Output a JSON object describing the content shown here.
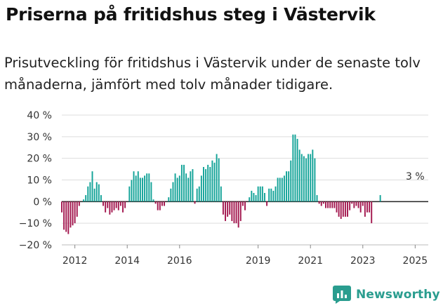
{
  "title": "Priserna på fritidshus steg i Västervik",
  "subtitle": "Prisutveckling för fritidshus i Västervik under de senaste tolv månaderna, jämfört med tolv månader tidigare.",
  "brand": {
    "name": "Newsworthy",
    "icon": "newsworthy-logo-icon",
    "color": "#2a9d8f"
  },
  "chart_data": {
    "type": "bar",
    "colors": {
      "positive": "#13a398",
      "negative": "#a3184f",
      "zero_line": "#222222",
      "grid": "#dddddd"
    },
    "ylim": [
      -20,
      40
    ],
    "yticks": [
      -20,
      -10,
      0,
      10,
      20,
      30,
      40
    ],
    "ytick_labels": [
      "−20 %",
      "−10 %",
      "0 %",
      "10 %",
      "20 %",
      "30 %",
      "40 %"
    ],
    "xticks": [
      2012,
      2014,
      2016,
      2019,
      2021,
      2023,
      2025
    ],
    "xlim": [
      2011.5,
      2025.5
    ],
    "annotation": {
      "text": "3 %",
      "x": 2025.0,
      "y": 3
    },
    "start": 2011.5,
    "step": 0.083333,
    "values": [
      -5,
      -13,
      -14,
      -15,
      -12,
      -11,
      -10,
      -7,
      -2,
      0,
      1,
      3,
      7,
      9,
      14,
      6,
      9,
      8,
      3,
      -2,
      -5,
      -3,
      -6,
      -5,
      -4,
      -3,
      -4,
      -2,
      -5,
      -3,
      0,
      7,
      10,
      14,
      12,
      14,
      11,
      11,
      12,
      13,
      13,
      9,
      1,
      -1,
      -4,
      -4,
      -2,
      -2,
      0,
      2,
      6,
      9,
      13,
      11,
      12,
      17,
      17,
      13,
      11,
      14,
      15,
      -1,
      6,
      7,
      12,
      16,
      15,
      17,
      16,
      19,
      18,
      22,
      20,
      7,
      -6,
      -9,
      -7,
      -6,
      -9,
      -10,
      -10,
      -12,
      -9,
      -2,
      -4,
      0,
      2,
      5,
      4,
      3,
      7,
      7,
      7,
      4,
      -2,
      6,
      6,
      5,
      7,
      11,
      11,
      11,
      12,
      14,
      14,
      19,
      31,
      31,
      29,
      24,
      22,
      21,
      20,
      22,
      22,
      24,
      20,
      3,
      -1,
      -2,
      -1,
      -3,
      -3,
      -3,
      -3,
      -3,
      -5,
      -7,
      -8,
      -7,
      -7,
      -7,
      -4,
      -1,
      -3,
      -2,
      -3,
      -5,
      -2,
      -7,
      -5,
      -5,
      -10,
      0,
      0,
      0,
      3
    ]
  }
}
